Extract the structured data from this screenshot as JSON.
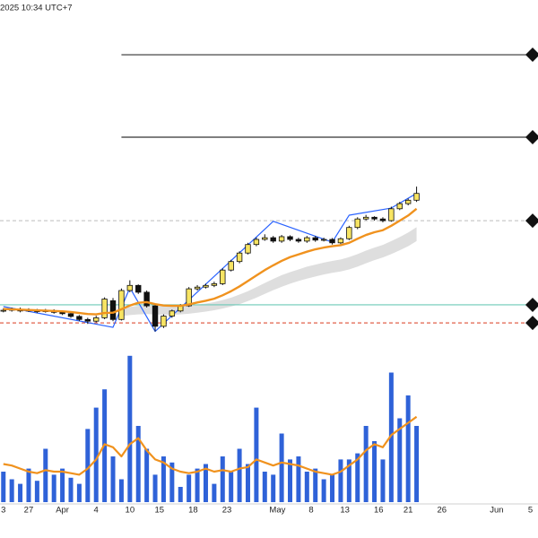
{
  "header": "2025 10:34 UTC+7",
  "chart_data": [
    {
      "type": "candlestick",
      "x": [
        0,
        1,
        2,
        3,
        4,
        5,
        6,
        7,
        8,
        9,
        10,
        11,
        12,
        13,
        14,
        15,
        16,
        17,
        18,
        19,
        20,
        21,
        22,
        23,
        24,
        25,
        26,
        27,
        28,
        29,
        30,
        31,
        32,
        33,
        34,
        35,
        36,
        37,
        38,
        39,
        40,
        41,
        42,
        43,
        44,
        45,
        46,
        47,
        48,
        49
      ],
      "open": [
        14.0,
        14.2,
        14.5,
        14.0,
        14.3,
        13.8,
        14.1,
        13.6,
        13.2,
        12.4,
        11.5,
        11.0,
        12.0,
        17.0,
        11.5,
        20.0,
        21.5,
        19.5,
        15.5,
        9.5,
        12.5,
        14.0,
        15.5,
        20.5,
        21.0,
        21.5,
        22.0,
        26.0,
        28.5,
        31.0,
        33.5,
        35.0,
        35.5,
        34.5,
        35.8,
        35.0,
        34.5,
        35.5,
        34.8,
        35.0,
        34.0,
        35.2,
        38.5,
        41.0,
        41.5,
        41.0,
        40.5,
        44.0,
        45.5,
        46.5
      ],
      "high": [
        14.8,
        15.0,
        15.0,
        14.8,
        14.6,
        14.6,
        14.5,
        14.0,
        13.5,
        12.8,
        12.0,
        12.6,
        18.0,
        17.8,
        20.6,
        23.0,
        21.8,
        20.0,
        15.8,
        13.0,
        14.4,
        16.0,
        21.0,
        21.6,
        22.0,
        22.6,
        26.5,
        29.0,
        31.5,
        34.0,
        35.6,
        36.5,
        36.0,
        36.3,
        36.2,
        35.5,
        36.0,
        36.0,
        35.5,
        35.4,
        35.6,
        39.0,
        41.5,
        42.2,
        41.8,
        41.5,
        44.6,
        46.0,
        47.0,
        50.5
      ],
      "low": [
        13.6,
        13.8,
        13.6,
        13.7,
        13.4,
        13.5,
        13.2,
        12.8,
        12.0,
        11.0,
        10.2,
        10.6,
        11.6,
        11.0,
        11.2,
        19.5,
        19.0,
        15.0,
        8.0,
        9.0,
        12.0,
        13.6,
        15.2,
        20.0,
        20.6,
        21.0,
        21.6,
        25.6,
        28.0,
        30.6,
        33.0,
        34.6,
        34.0,
        34.0,
        34.5,
        34.0,
        34.0,
        34.3,
        34.4,
        33.5,
        33.6,
        34.8,
        38.0,
        40.6,
        40.5,
        40.0,
        40.2,
        43.6,
        45.0,
        46.0
      ],
      "close": [
        14.2,
        14.5,
        14.0,
        14.3,
        13.8,
        14.1,
        13.6,
        13.2,
        12.4,
        11.5,
        11.0,
        12.0,
        17.5,
        11.5,
        20.0,
        21.5,
        19.5,
        15.5,
        9.5,
        12.5,
        14.0,
        15.5,
        20.5,
        21.0,
        21.5,
        22.0,
        26.0,
        28.5,
        31.0,
        33.5,
        35.0,
        35.5,
        34.5,
        35.8,
        35.0,
        34.5,
        35.5,
        34.8,
        35.0,
        34.0,
        35.2,
        38.5,
        41.0,
        41.5,
        41.0,
        40.5,
        44.0,
        45.5,
        46.5,
        48.5
      ],
      "up_color": "#f7e463",
      "down_color": "#111111",
      "xlim": [
        -0.4,
        63.4
      ],
      "ylim": [
        0,
        100
      ],
      "xticks": [
        {
          "value": 0,
          "label": "3"
        },
        {
          "value": 3,
          "label": "27"
        },
        {
          "value": 7,
          "label": "Apr"
        },
        {
          "value": 11,
          "label": "4"
        },
        {
          "value": 15,
          "label": "10"
        },
        {
          "value": 18.5,
          "label": "15"
        },
        {
          "value": 22.5,
          "label": "18"
        },
        {
          "value": 26.5,
          "label": "23"
        },
        {
          "value": 32.5,
          "label": "May"
        },
        {
          "value": 36.5,
          "label": "8"
        },
        {
          "value": 40.5,
          "label": "13"
        },
        {
          "value": 44.5,
          "label": "16"
        },
        {
          "value": 48,
          "label": "21"
        },
        {
          "value": 52,
          "label": "26"
        },
        {
          "value": 58.5,
          "label": "Jun"
        },
        {
          "value": 62.5,
          "label": "5"
        }
      ],
      "ma": {
        "color": "#f0921e",
        "values": [
          14.6,
          14.5,
          14.4,
          14.3,
          14.2,
          14.1,
          14.0,
          13.9,
          13.7,
          13.4,
          13.1,
          13.0,
          13.4,
          13.5,
          14.5,
          15.6,
          16.4,
          16.6,
          16.0,
          15.6,
          15.5,
          15.5,
          15.9,
          16.5,
          17.0,
          17.6,
          18.6,
          19.8,
          21.2,
          22.8,
          24.4,
          26.0,
          27.4,
          28.7,
          29.8,
          30.6,
          31.4,
          32.1,
          32.6,
          33.0,
          33.3,
          34.0,
          35.2,
          36.3,
          37.1,
          37.7,
          39.0,
          40.5,
          42.0,
          44.0
        ]
      },
      "band": {
        "color": "#d6d6d6",
        "upper": [
          null,
          null,
          null,
          null,
          null,
          null,
          null,
          null,
          null,
          null,
          null,
          null,
          null,
          null,
          14.8,
          15.2,
          15.5,
          15.6,
          15.5,
          15.4,
          15.4,
          15.4,
          15.6,
          15.9,
          16.2,
          16.6,
          17.2,
          17.9,
          18.8,
          19.8,
          21.0,
          22.2,
          23.4,
          24.5,
          25.4,
          26.2,
          27.0,
          27.6,
          28.2,
          28.7,
          29.1,
          29.8,
          30.7,
          31.7,
          32.6,
          33.4,
          34.5,
          35.7,
          37.0,
          38.6
        ],
        "lower": [
          null,
          null,
          null,
          null,
          null,
          null,
          null,
          null,
          null,
          null,
          null,
          null,
          null,
          null,
          12.5,
          12.8,
          13.0,
          13.1,
          13.0,
          12.9,
          12.9,
          13.0,
          13.2,
          13.5,
          13.8,
          14.2,
          14.7,
          15.3,
          16.0,
          16.9,
          17.9,
          19.0,
          20.1,
          21.1,
          22.0,
          22.8,
          23.5,
          24.1,
          24.7,
          25.2,
          25.6,
          26.2,
          27.0,
          28.0,
          28.9,
          29.7,
          30.7,
          31.8,
          33.0,
          34.5
        ]
      },
      "zigzag": {
        "color": "#2962ff",
        "x": [
          0,
          13,
          15,
          18,
          32,
          39,
          41,
          46,
          49
        ],
        "values": [
          15.3,
          9.2,
          20.8,
          8.0,
          40.3,
          34.2,
          42.1,
          44.2,
          48.5
        ]
      },
      "levels": [
        {
          "value": 89.2,
          "color": "#333333",
          "style": "solid",
          "from": 14
        },
        {
          "value": 65.0,
          "color": "#333333",
          "style": "solid",
          "from": 14
        },
        {
          "value": 40.5,
          "color": "#c8c8c8",
          "style": "dashed",
          "from": -0.4
        },
        {
          "value": 15.8,
          "color": "#6cc9b8",
          "style": "solid",
          "from": -0.4
        },
        {
          "value": 10.5,
          "color": "#e0604a",
          "style": "dashed",
          "from": -0.4
        }
      ]
    },
    {
      "type": "bar",
      "x": [
        0,
        1,
        2,
        3,
        4,
        5,
        6,
        7,
        8,
        9,
        10,
        11,
        12,
        13,
        14,
        15,
        16,
        17,
        18,
        19,
        20,
        21,
        22,
        23,
        24,
        25,
        26,
        27,
        28,
        29,
        30,
        31,
        32,
        33,
        34,
        35,
        36,
        37,
        38,
        39,
        40,
        41,
        42,
        43,
        44,
        45,
        46,
        47,
        48,
        49
      ],
      "values": [
        20,
        15,
        12,
        22,
        14,
        35,
        18,
        22,
        16,
        12,
        48,
        62,
        74,
        30,
        15,
        96,
        50,
        35,
        18,
        30,
        26,
        10,
        18,
        22,
        25,
        12,
        30,
        20,
        35,
        25,
        62,
        20,
        18,
        45,
        28,
        30,
        20,
        22,
        15,
        18,
        28,
        28,
        32,
        50,
        40,
        28,
        85,
        55,
        70,
        50
      ],
      "color": "#2f62d8",
      "xlim": [
        -0.4,
        63.4
      ],
      "ylim": [
        0,
        100
      ],
      "ma": {
        "color": "#f0921e",
        "values": [
          25,
          24,
          22,
          20,
          19,
          21,
          20,
          20,
          19,
          18,
          22,
          28,
          38,
          36,
          30,
          38,
          42,
          34,
          28,
          26,
          22,
          20,
          19,
          20,
          22,
          20,
          21,
          20,
          22,
          23,
          28,
          26,
          24,
          26,
          25,
          24,
          22,
          20,
          19,
          18,
          20,
          24,
          28,
          34,
          38,
          36,
          44,
          48,
          52,
          56
        ]
      }
    }
  ]
}
